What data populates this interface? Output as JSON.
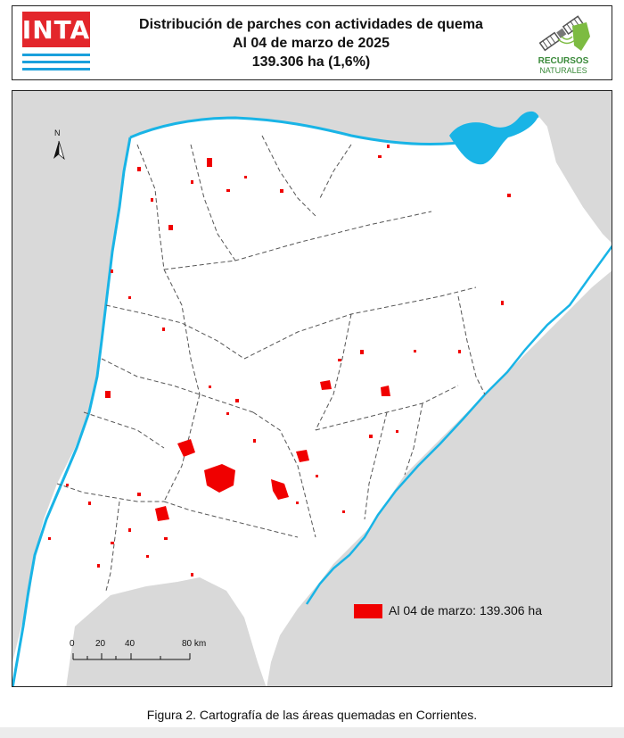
{
  "header": {
    "logo_inta": "INTA",
    "title_line1": "Distribución de parches con actividades de quema",
    "title_line2": "Al 04 de marzo de 2025",
    "title_line3": "139.306 ha (1,6%)",
    "logo_rn_line1": "RECURSOS",
    "logo_rn_line2": "NATURALES"
  },
  "map": {
    "north": "N",
    "legend": "Al 04 de marzo: 139.306 ha",
    "legend_color": "#f00000",
    "scale": {
      "labels": [
        "0",
        "20",
        "40",
        "80 km"
      ]
    },
    "colors": {
      "outside": "#d9d9d9",
      "province": "#ffffff",
      "water": "#19b4e6",
      "burned": "#f00000",
      "boundary": "#555555"
    }
  },
  "caption": "Figura 2. Cartografía de las áreas quemadas en Corrientes."
}
